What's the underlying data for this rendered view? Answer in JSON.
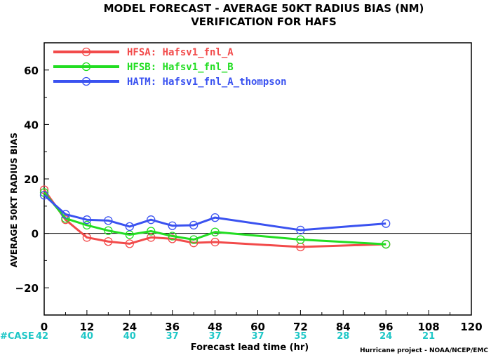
{
  "chart_data": {
    "type": "line",
    "title": "MODEL FORECAST - AVERAGE 50KT RADIUS BIAS (NM)",
    "subtitle": "VERIFICATION FOR HAFS",
    "xlabel": "Forecast lead time (hr)",
    "ylabel": "AVERAGE 50KT RADIUS BIAS",
    "xlim": [
      0,
      120
    ],
    "ylim": [
      -30,
      70
    ],
    "xticks": [
      0,
      12,
      24,
      36,
      48,
      60,
      72,
      84,
      96,
      108,
      120
    ],
    "yticks": [
      -20,
      0,
      20,
      40,
      60
    ],
    "zero_line": true,
    "legend_placement": "top-left",
    "series": [
      {
        "name": "HFSA: Hafsv1_fnl_A",
        "color": "#f24b4b",
        "x": [
          0,
          6,
          12,
          18,
          24,
          30,
          36,
          42,
          48,
          72,
          96
        ],
        "y": [
          16,
          5,
          -1.5,
          -3,
          -3.8,
          -1.5,
          -2,
          -3.5,
          -3.2,
          -5,
          -4
        ]
      },
      {
        "name": "HFSB: Hafsv1_fnl_B",
        "color": "#22dd22",
        "x": [
          0,
          6,
          12,
          18,
          24,
          30,
          36,
          42,
          48,
          72,
          96
        ],
        "y": [
          15,
          5.5,
          3,
          1,
          -0.5,
          0.8,
          -1,
          -2.3,
          0.5,
          -2.3,
          -4
        ]
      },
      {
        "name": "HATM: Hafsv1_fnl_A_thompson",
        "color": "#3a52f0",
        "x": [
          0,
          6,
          12,
          18,
          24,
          30,
          36,
          42,
          48,
          72,
          96
        ],
        "y": [
          14,
          7,
          5,
          4.7,
          2.5,
          5,
          2.8,
          3,
          5.8,
          1.2,
          3.6
        ]
      }
    ],
    "cases": {
      "label": "#CASE",
      "x": [
        0,
        12,
        24,
        36,
        48,
        60,
        72,
        84,
        96,
        108
      ],
      "values": [
        "42",
        "40",
        "40",
        "37",
        "37",
        "37",
        "35",
        "28",
        "24",
        "21"
      ]
    },
    "credit": "Hurricane project - NOAA/NCEP/EMC"
  }
}
